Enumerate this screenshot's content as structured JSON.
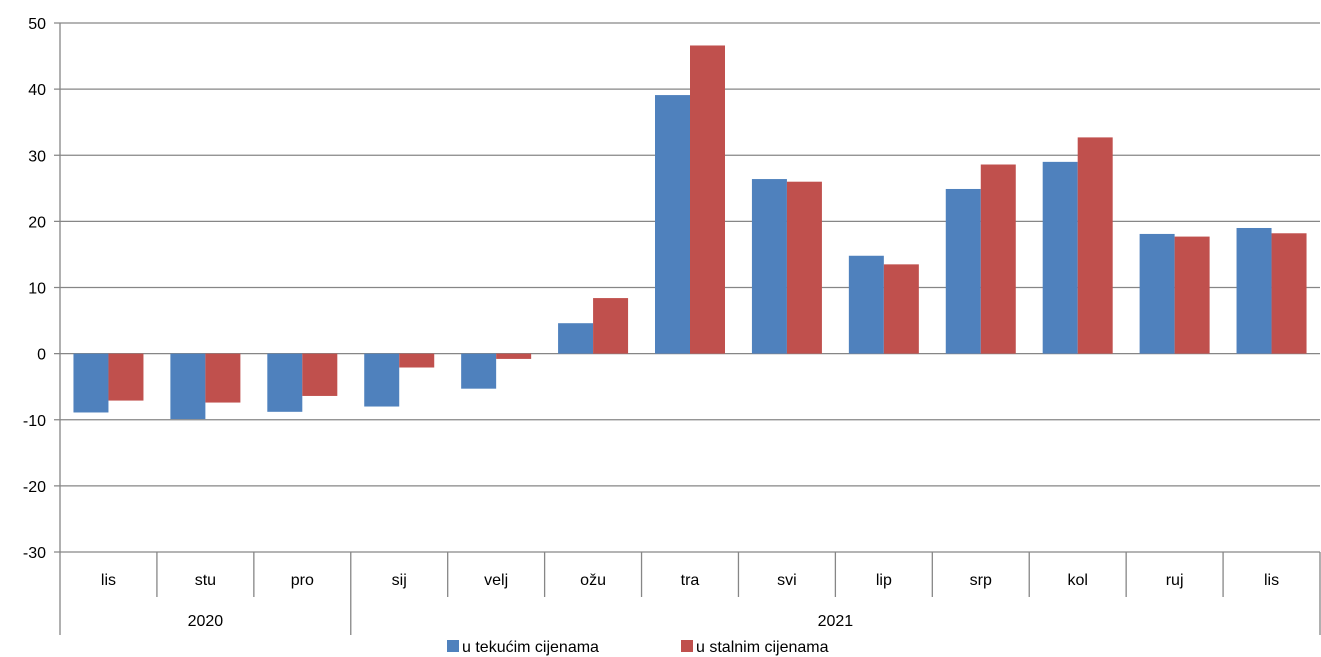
{
  "chart_data": {
    "type": "bar",
    "title": "",
    "xlabel": "",
    "ylabel": "",
    "categories": [
      "lis",
      "stu",
      "pro",
      "sij",
      "velj",
      "ožu",
      "tra",
      "svi",
      "lip",
      "srp",
      "kol",
      "ruj",
      "lis"
    ],
    "groups": [
      {
        "label": "2020",
        "start": 0,
        "count": 3
      },
      {
        "label": "2021",
        "start": 3,
        "count": 10
      }
    ],
    "series": [
      {
        "name": "u tekućim cijenama",
        "color": "#4F81BD",
        "values": [
          -8.9,
          -9.9,
          -8.8,
          -8.0,
          -5.3,
          4.6,
          39.1,
          26.4,
          14.8,
          24.9,
          29.0,
          18.1,
          19.0
        ]
      },
      {
        "name": "u stalnim cijenama",
        "color": "#C0504D",
        "values": [
          -7.1,
          -7.4,
          -6.4,
          -2.1,
          -0.8,
          8.4,
          46.6,
          26.0,
          13.5,
          28.6,
          32.7,
          17.7,
          18.2
        ]
      }
    ],
    "ylim": [
      -30,
      50
    ],
    "yticks": [
      50,
      40,
      30,
      20,
      10,
      0,
      -10,
      -20,
      -30
    ],
    "grid": true,
    "legend_position": "bottom-center"
  }
}
